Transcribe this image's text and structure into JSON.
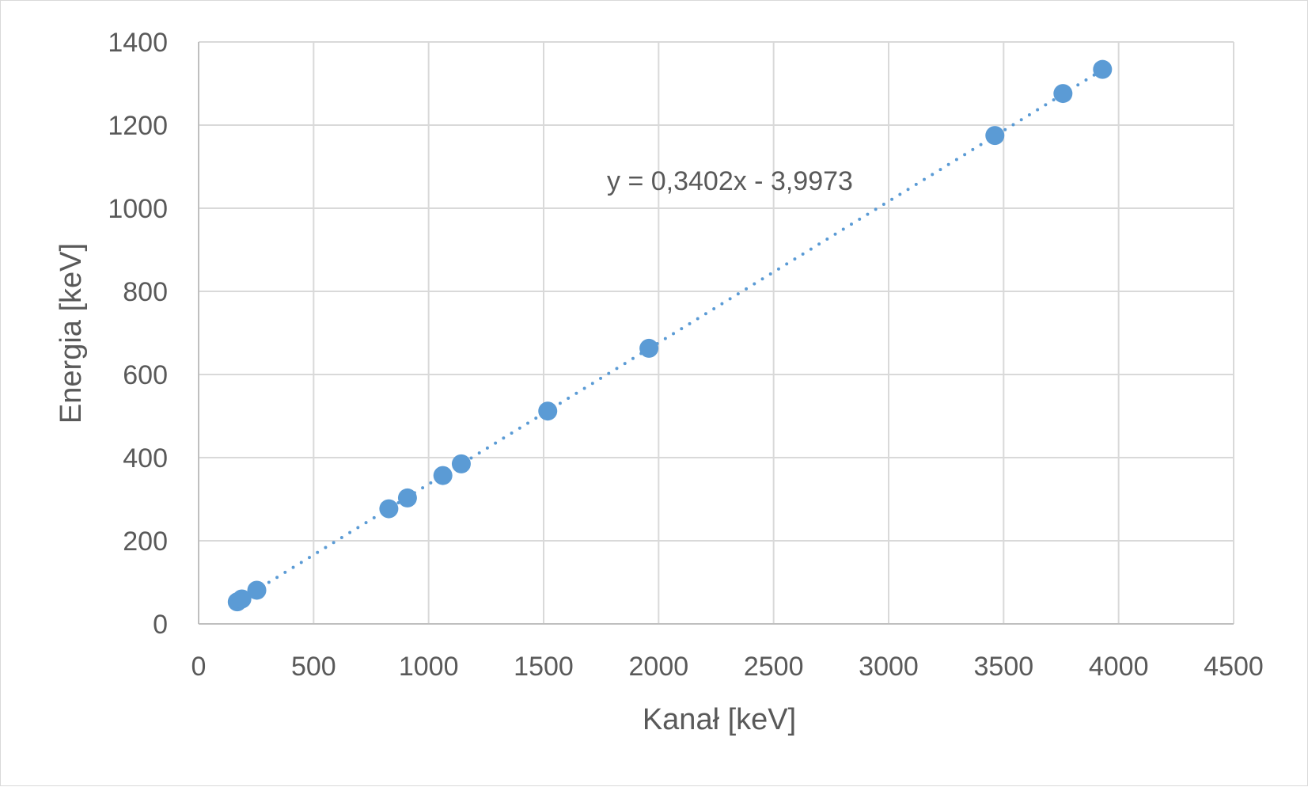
{
  "chart_data": {
    "type": "scatter",
    "xlabel": "Kanał [keV]",
    "ylabel": "Energia [keV]",
    "xlim": [
      0,
      4500
    ],
    "ylim": [
      0,
      1400
    ],
    "x_ticks": [
      "0",
      "500",
      "1000",
      "1500",
      "2000",
      "2500",
      "3000",
      "3500",
      "4000",
      "4500"
    ],
    "y_ticks": [
      "0",
      "200",
      "400",
      "600",
      "800",
      "1000",
      "1200",
      "1400"
    ],
    "grid": true,
    "legend": "none",
    "marker_color": "#5b9bd5",
    "trendline_color": "#5b9bd5",
    "trendline": {
      "style": "dotted",
      "slope": 0.3402,
      "intercept": -3.9973,
      "x_range": [
        165,
        3930
      ],
      "equation_label": "y = 0,3402x - 3,9973"
    },
    "series": [
      {
        "x": [
          168,
          188,
          253,
          827,
          908,
          1062,
          1142,
          1518,
          1958,
          3462,
          3758,
          3930
        ],
        "y": [
          53,
          60,
          81,
          277,
          303,
          357,
          385,
          512,
          663,
          1175,
          1276,
          1334
        ]
      }
    ]
  }
}
